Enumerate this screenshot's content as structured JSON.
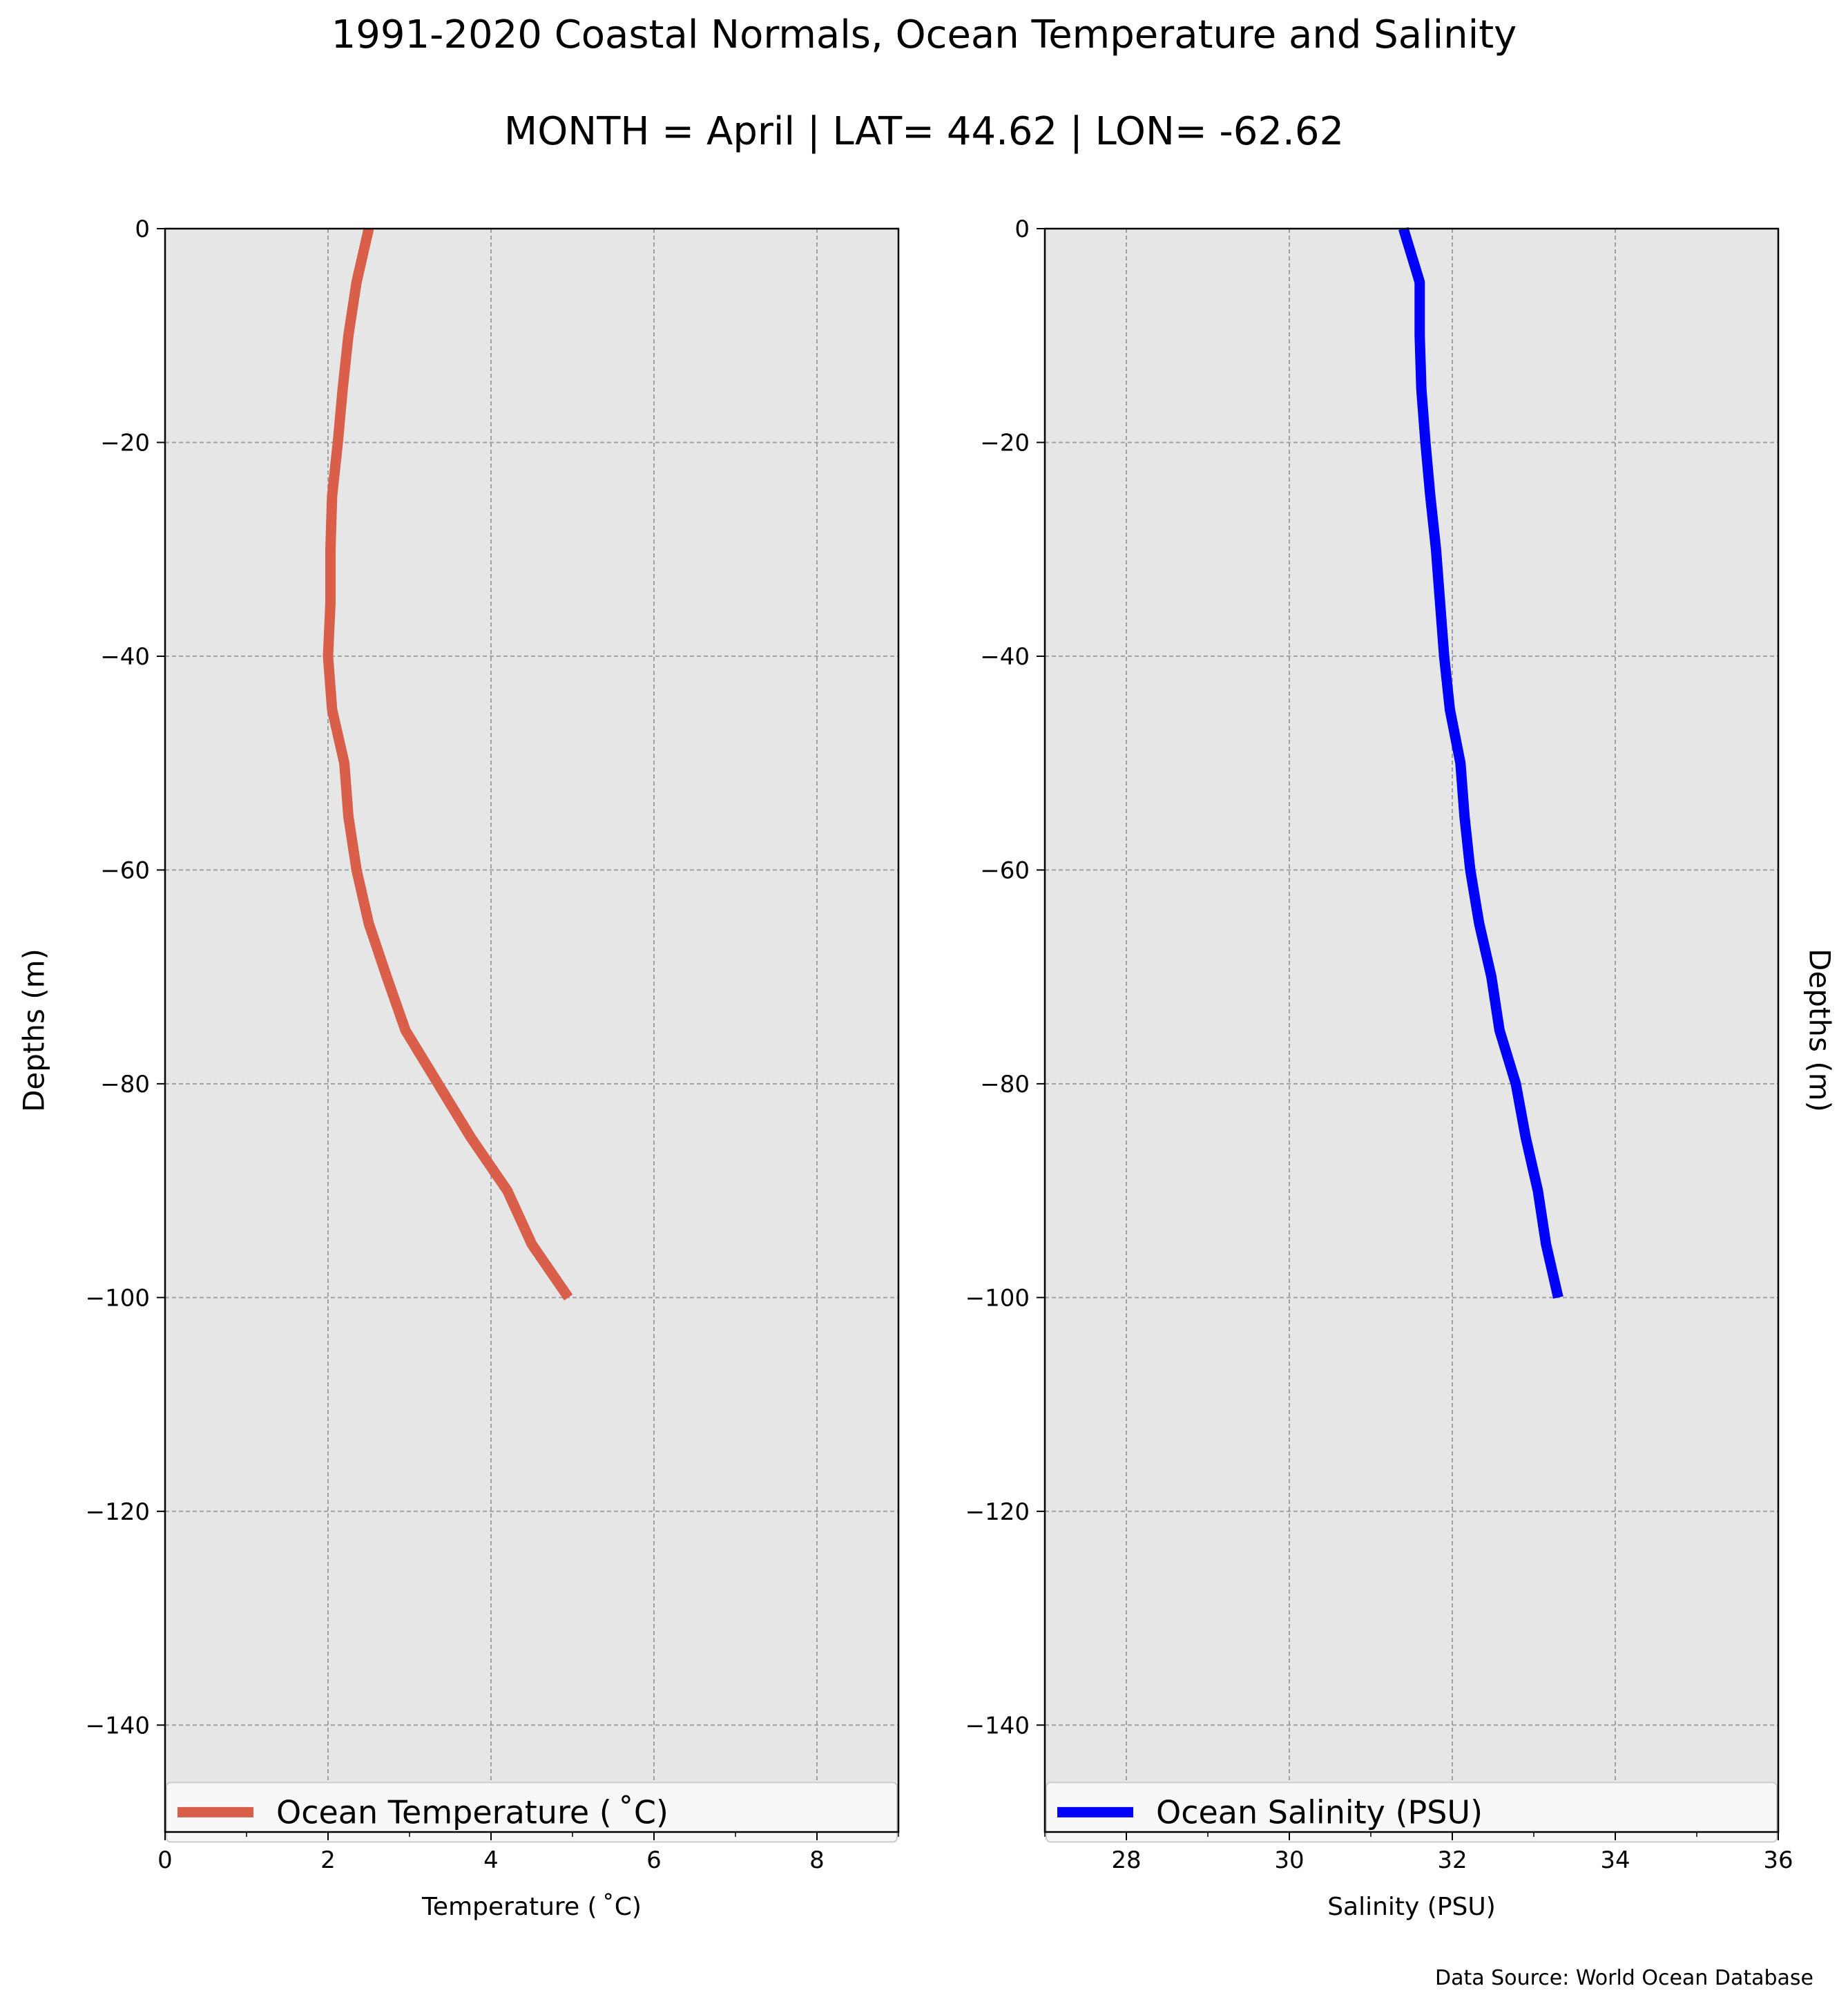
{
  "title": "1991-2020 Coastal Normals, Ocean Temperature and Salinity",
  "subtitle": "MONTH = April | LAT= 44.62 | LON= -62.62",
  "source_note": "Data Source: World Ocean Database",
  "chart_data": [
    {
      "type": "line",
      "xlabel": "Temperature ($^\\circ$C)",
      "xlabel_display": "Temperature ( ˚C)",
      "ylabel": "Depths (m)",
      "xlim": [
        0,
        9
      ],
      "ylim": [
        -150,
        0
      ],
      "xticks": [
        0,
        2,
        4,
        6,
        8
      ],
      "xticklabels": [
        "0",
        "2",
        "4",
        "6",
        "8"
      ],
      "minor_xticks": [
        1,
        3,
        5,
        7,
        9
      ],
      "yticks": [
        0,
        -20,
        -40,
        -60,
        -80,
        -100,
        -120,
        -140
      ],
      "yticklabels": [
        "0",
        "−20",
        "−40",
        "−60",
        "−80",
        "−100",
        "−120",
        "−140"
      ],
      "grid": true,
      "background": "#e6e6e6",
      "legend_position": "bottom",
      "series": [
        {
          "name": "Ocean Temperature ( ˚C)",
          "color": "#d95f4b",
          "x": [
            2.5,
            2.35,
            2.25,
            2.18,
            2.12,
            2.05,
            2.03,
            2.03,
            2.0,
            2.05,
            2.2,
            2.25,
            2.35,
            2.5,
            2.72,
            2.95,
            3.35,
            3.75,
            4.2,
            4.5,
            4.95
          ],
          "y": [
            0,
            -5,
            -10,
            -15,
            -20,
            -25,
            -30,
            -35,
            -40,
            -45,
            -50,
            -55,
            -60,
            -65,
            -70,
            -75,
            -80,
            -85,
            -90,
            -95,
            -100
          ]
        }
      ]
    },
    {
      "type": "line",
      "xlabel": "Salinity (PSU)",
      "xlabel_display": "Salinity (PSU)",
      "ylabel": "Depths (m)",
      "xlim": [
        27,
        36
      ],
      "ylim": [
        -150,
        0
      ],
      "xticks": [
        28,
        30,
        32,
        34,
        36
      ],
      "xticklabels": [
        "28",
        "30",
        "32",
        "34",
        "36"
      ],
      "minor_xticks": [
        27,
        29,
        31,
        33,
        35
      ],
      "yticks": [
        0,
        -20,
        -40,
        -60,
        -80,
        -100,
        -120,
        -140
      ],
      "yticklabels": [
        "0",
        "−20",
        "−40",
        "−60",
        "−80",
        "−100",
        "−120",
        "−140"
      ],
      "grid": true,
      "background": "#e6e6e6",
      "legend_position": "bottom",
      "series": [
        {
          "name": "Ocean Salinity (PSU)",
          "color": "#0000ff",
          "x": [
            31.4,
            31.6,
            31.6,
            31.62,
            31.67,
            31.73,
            31.8,
            31.85,
            31.9,
            31.97,
            32.1,
            32.15,
            32.22,
            32.33,
            32.48,
            32.58,
            32.78,
            32.9,
            33.05,
            33.15,
            33.3
          ],
          "y": [
            0,
            -5,
            -10,
            -15,
            -20,
            -25,
            -30,
            -35,
            -40,
            -45,
            -50,
            -55,
            -60,
            -65,
            -70,
            -75,
            -80,
            -85,
            -90,
            -95,
            -100
          ]
        }
      ]
    }
  ]
}
